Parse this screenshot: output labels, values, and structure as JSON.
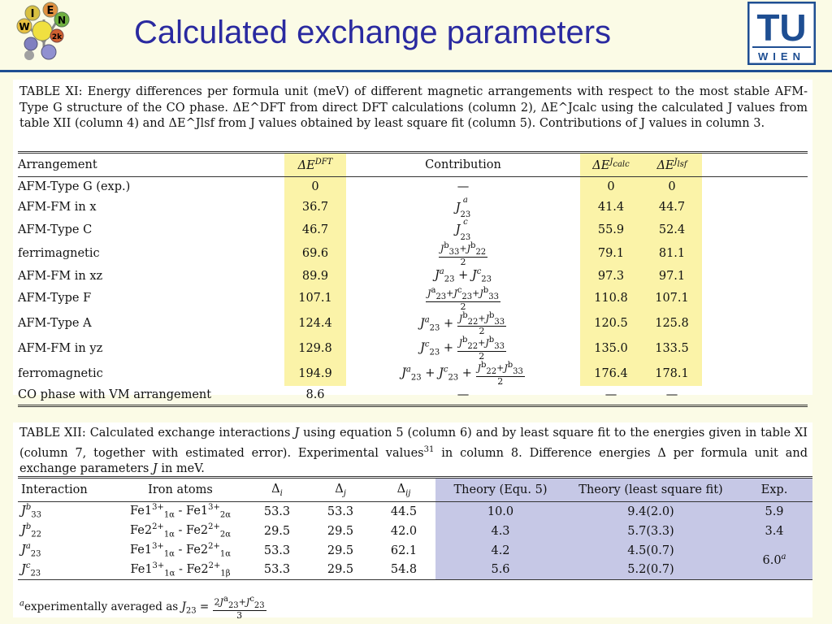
{
  "title": "Calculated exchange parameters",
  "logo_left": {
    "letters": [
      "I",
      "E",
      "N",
      "W",
      "2k"
    ]
  },
  "logo_right": {
    "big": "TU",
    "small": "WIEN"
  },
  "table11": {
    "caption": "TABLE XI: Energy differences per formula unit (meV) of different magnetic arrangements with respect to the most stable AFM-Type G structure of the CO phase. ΔE^DFT from direct DFT calculations (column 2), ΔE^Jcalc using the calculated J values from table XII (column 4) and ΔE^Jlsf from J values obtained by least square fit (column 5). Contributions of J values in column 3.",
    "headers": [
      "Arrangement",
      "ΔE^DFT",
      "Contribution",
      "ΔE^Jcalc",
      "ΔE^Jlsf"
    ],
    "rows": [
      {
        "arr": "AFM-Type G (exp.)",
        "dft": "0",
        "contrib": "—",
        "calc": "0",
        "lsf": "0"
      },
      {
        "arr": "AFM-FM in x",
        "dft": "36.7",
        "contrib": "J23a",
        "calc": "41.4",
        "lsf": "44.7"
      },
      {
        "arr": "AFM-Type C",
        "dft": "46.7",
        "contrib": "J23c",
        "calc": "55.9",
        "lsf": "52.4"
      },
      {
        "arr": "ferrimagnetic",
        "dft": "69.6",
        "contrib": "(J33b+J22b)/2",
        "calc": "79.1",
        "lsf": "81.1"
      },
      {
        "arr": "AFM-FM in xz",
        "dft": "89.9",
        "contrib": "J23a + J23c",
        "calc": "97.3",
        "lsf": "97.1"
      },
      {
        "arr": "AFM-Type F",
        "dft": "107.1",
        "contrib": "(J23a+J23c+J33b)/2",
        "calc": "110.8",
        "lsf": "107.1"
      },
      {
        "arr": "AFM-Type A",
        "dft": "124.4",
        "contrib": "J23a + (J22b+J33b)/2",
        "calc": "120.5",
        "lsf": "125.8"
      },
      {
        "arr": "AFM-FM in yz",
        "dft": "129.8",
        "contrib": "J23c + (J22b+J33b)/2",
        "calc": "135.0",
        "lsf": "133.5"
      },
      {
        "arr": "ferromagnetic",
        "dft": "194.9",
        "contrib": "J23a + J23c + (J22b+J33b)/2",
        "calc": "176.4",
        "lsf": "178.1"
      },
      {
        "arr": "CO phase with VM arrangement",
        "dft": "8.6",
        "contrib": "—",
        "calc": "—",
        "lsf": "—"
      }
    ]
  },
  "table12": {
    "caption": "TABLE XII: Calculated exchange interactions J using equation 5 (column 6) and by least square fit to the energies given in table XI (column 7, together with estimated error). Experimental values31 in column 8. Difference energies Δ per formula unit and exchange parameters J in meV.",
    "headers": [
      "Interaction",
      "Iron atoms",
      "Δi",
      "Δj",
      "Δij",
      "Theory (Equ. 5)",
      "Theory (least square fit)",
      "Exp."
    ],
    "rows": [
      {
        "inter": "J33b",
        "atoms": "Fe1 1α 3+ - Fe1 2α 3+",
        "di": "53.3",
        "dj": "53.3",
        "dij": "44.5",
        "theory": "10.0",
        "lsq": "9.4(2.0)",
        "exp": "5.9"
      },
      {
        "inter": "J22b",
        "atoms": "Fe2 1α 2+ - Fe2 2α 2+",
        "di": "29.5",
        "dj": "29.5",
        "dij": "42.0",
        "theory": "4.3",
        "lsq": "5.7(3.3)",
        "exp": "3.4"
      },
      {
        "inter": "J23a",
        "atoms": "Fe1 1α 3+ - Fe2 1α 2+",
        "di": "53.3",
        "dj": "29.5",
        "dij": "62.1",
        "theory": "4.2",
        "lsq": "4.5(0.7)",
        "exp": "6.0a"
      },
      {
        "inter": "J23c",
        "atoms": "Fe1 1α 3+ - Fe2 1β 2+",
        "di": "53.3",
        "dj": "29.5",
        "dij": "54.8",
        "theory": "5.6",
        "lsq": "5.2(0.7)",
        "exp": ""
      }
    ],
    "footnote": "aexperimentally averaged as J23 = (2J23a+J23c)/3"
  }
}
